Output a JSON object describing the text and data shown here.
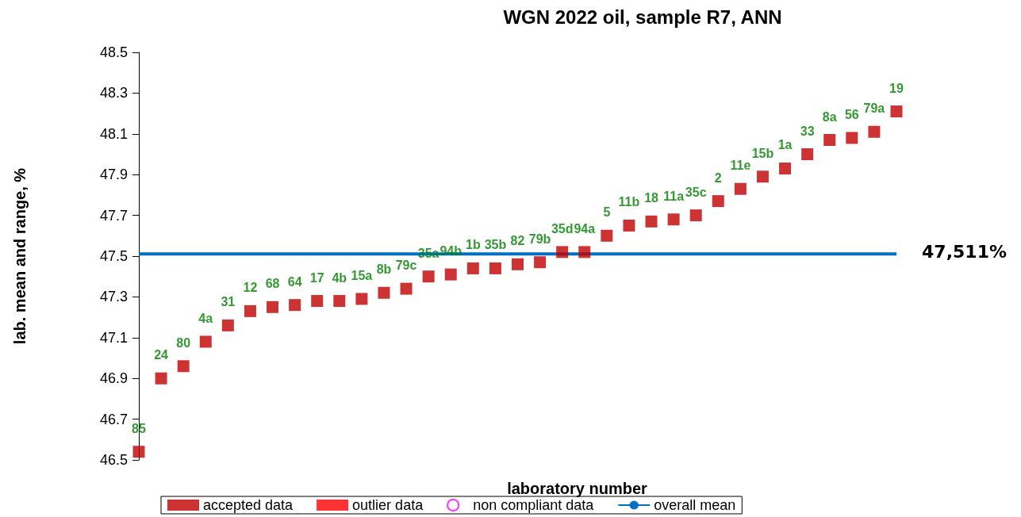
{
  "chart_data": {
    "type": "scatter",
    "title": "WGN 2022 oil, sample R7, ANN",
    "xlabel": "laboratory number",
    "ylabel": "lab. mean and range, %",
    "categories": [
      "85",
      "24",
      "80",
      "4a",
      "31",
      "12",
      "68",
      "64",
      "17",
      "4b",
      "15a",
      "8b",
      "79c",
      "35a",
      "94b",
      "1b",
      "35b",
      "82",
      "79b",
      "35d",
      "94a",
      "5",
      "11b",
      "18",
      "11a",
      "35c",
      "2",
      "11e",
      "15b",
      "1a",
      "33",
      "8a",
      "56",
      "79a",
      "19"
    ],
    "series": [
      {
        "name": "accepted data",
        "color": "#c00000",
        "marker": "square",
        "values": [
          46.54,
          46.9,
          46.96,
          47.08,
          47.16,
          47.23,
          47.25,
          47.26,
          47.28,
          47.28,
          47.29,
          47.32,
          47.34,
          47.4,
          47.41,
          47.44,
          47.44,
          47.46,
          47.47,
          47.52,
          47.52,
          47.6,
          47.65,
          47.67,
          47.68,
          47.7,
          47.77,
          47.83,
          47.89,
          47.93,
          48.0,
          48.07,
          48.08,
          48.11,
          48.21
        ]
      },
      {
        "name": "outlier data",
        "color": "#ff0000",
        "marker": "square",
        "values": [
          null,
          null,
          null,
          null,
          null,
          null,
          null,
          null,
          null,
          null,
          null,
          null,
          null,
          null,
          null,
          null,
          null,
          null,
          null,
          null,
          null,
          null,
          null,
          null,
          null,
          null,
          null,
          null,
          null,
          null,
          null,
          null,
          null,
          null,
          null
        ]
      },
      {
        "name": "non compliant data",
        "color": "#ff00ff",
        "marker": "circle",
        "values": [
          null,
          null,
          null,
          null,
          null,
          null,
          null,
          null,
          null,
          null,
          null,
          null,
          null,
          null,
          null,
          null,
          null,
          null,
          null,
          null,
          null,
          null,
          null,
          null,
          null,
          null,
          null,
          null,
          null,
          null,
          null,
          null,
          null,
          null,
          null
        ]
      },
      {
        "name": "overall mean",
        "type": "line",
        "color": "#0070c0",
        "marker": "none",
        "values": [
          47.511,
          47.511,
          47.511,
          47.511,
          47.511,
          47.511,
          47.511,
          47.511,
          47.511,
          47.511,
          47.511,
          47.511,
          47.511,
          47.511,
          47.511,
          47.511,
          47.511,
          47.511,
          47.511,
          47.511,
          47.511,
          47.511,
          47.511,
          47.511,
          47.511,
          47.511,
          47.511,
          47.511,
          47.511,
          47.511,
          47.511,
          47.511,
          47.511,
          47.511,
          47.511
        ]
      }
    ],
    "annotations": [
      "47,511%"
    ],
    "ylim": [
      46.5,
      48.5
    ],
    "yticks": [
      46.5,
      46.7,
      46.9,
      47.1,
      47.3,
      47.5,
      47.7,
      47.9,
      48.1,
      48.3,
      48.5
    ],
    "tick_labels": "y",
    "grid": false,
    "legend": "bottom"
  }
}
